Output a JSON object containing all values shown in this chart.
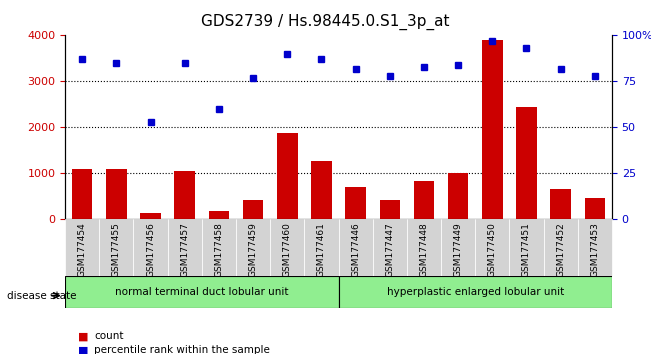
{
  "title": "GDS2739 / Hs.98445.0.S1_3p_at",
  "categories": [
    "GSM177454",
    "GSM177455",
    "GSM177456",
    "GSM177457",
    "GSM177458",
    "GSM177459",
    "GSM177460",
    "GSM177461",
    "GSM177446",
    "GSM177447",
    "GSM177448",
    "GSM177449",
    "GSM177450",
    "GSM177451",
    "GSM177452",
    "GSM177453"
  ],
  "bar_values": [
    1100,
    1100,
    150,
    1050,
    175,
    420,
    1870,
    1270,
    700,
    430,
    840,
    1010,
    3900,
    2450,
    670,
    470
  ],
  "dot_values": [
    87,
    85,
    53,
    85,
    60,
    77,
    90,
    87,
    82,
    78,
    83,
    84,
    97,
    93,
    82,
    78
  ],
  "bar_color": "#cc0000",
  "dot_color": "#0000cc",
  "ylim_left": [
    0,
    4000
  ],
  "ylim_right": [
    0,
    100
  ],
  "yticks_left": [
    0,
    1000,
    2000,
    3000,
    4000
  ],
  "yticks_right": [
    0,
    25,
    50,
    75,
    100
  ],
  "yticklabels_right": [
    "0",
    "25",
    "50",
    "75",
    "100%"
  ],
  "grid_values": [
    1000,
    2000,
    3000
  ],
  "group1_label": "normal terminal duct lobular unit",
  "group2_label": "hyperplastic enlarged lobular unit",
  "group1_count": 8,
  "group2_count": 8,
  "disease_state_label": "disease state",
  "legend_bar_label": "count",
  "legend_dot_label": "percentile rank within the sample",
  "background_color": "#ffffff",
  "plot_bg_color": "#ffffff",
  "group1_color": "#90ee90",
  "group2_color": "#90ee90",
  "tick_bg_color": "#d3d3d3"
}
